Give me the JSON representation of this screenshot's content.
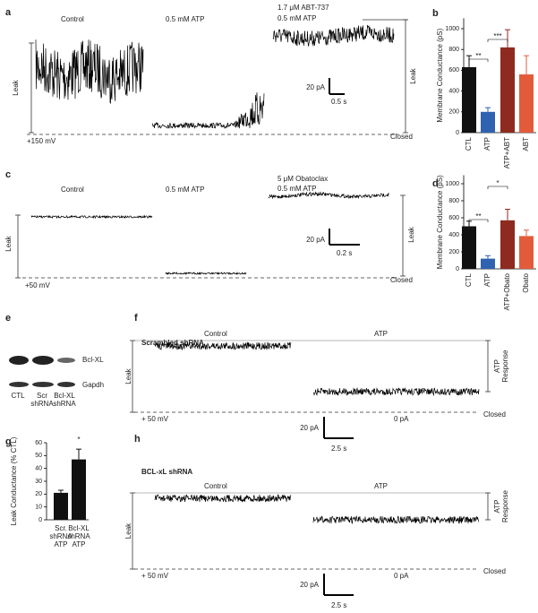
{
  "panels": {
    "a": {
      "label": "a",
      "conditions": [
        "Control",
        "0.5 mM ATP",
        "1.7 μM ABT-737",
        "0.5 mM ATP"
      ],
      "leak_left": "Leak",
      "leak_right": "Leak",
      "scale_current": "20 pA",
      "scale_time": "0.5 s",
      "voltage": "+150 mV",
      "closed": "Closed"
    },
    "c": {
      "label": "c",
      "conditions": [
        "Control",
        "0.5 mM ATP",
        "5 μM Obatoclax",
        "0.5 mM ATP"
      ],
      "leak_left": "Leak",
      "leak_right": "Leak",
      "scale_current": "20 pA",
      "scale_time": "0.2 s",
      "voltage": "+50 mV",
      "closed": "Closed"
    },
    "e": {
      "label": "e",
      "bands": [
        "Bcl-XL",
        "Gapdh"
      ],
      "lanes": [
        "CTL",
        "Scr shRNA",
        "Bcl-XL shRNA"
      ]
    },
    "f": {
      "label": "f",
      "title": "Scrambled shRNA",
      "conditions": [
        "Control",
        "ATP"
      ],
      "leak": "Leak",
      "response": "ATP Response",
      "voltage": "+ 50 mV",
      "zero": "0 pA",
      "closed": "Closed",
      "scale_current": "20 pA",
      "scale_time": "2.5 s"
    },
    "h": {
      "label": "h",
      "title": "BCL-xL shRNA",
      "conditions": [
        "Control",
        "ATP"
      ],
      "leak": "Leak",
      "response": "ATP Response",
      "voltage": "+ 50 mV",
      "zero": "0 pA",
      "closed": "Closed",
      "scale_current": "20 pA",
      "scale_time": "2.5 s"
    }
  },
  "chart_data": [
    {
      "type": "bar",
      "panel": "b",
      "ylabel": "Membrane Conductance (pS)",
      "categories": [
        "CTL",
        "ATP",
        "ATP+ABT",
        "ABT"
      ],
      "values": [
        630,
        200,
        820,
        560
      ],
      "errors": [
        110,
        40,
        170,
        180
      ],
      "colors": [
        "#111111",
        "#2f62b0",
        "#8e2a1f",
        "#e35b3a"
      ],
      "ylim": [
        0,
        1100
      ],
      "yticks": [
        0,
        200,
        400,
        600,
        800,
        1000
      ],
      "significance": [
        "**",
        "***"
      ]
    },
    {
      "type": "bar",
      "panel": "d",
      "ylabel": "Membrane Conductance (pS)",
      "categories": [
        "CTL",
        "ATP",
        "ATP+Obato",
        "Obato"
      ],
      "values": [
        500,
        120,
        570,
        385
      ],
      "errors": [
        60,
        35,
        130,
        70
      ],
      "colors": [
        "#111111",
        "#2f62b0",
        "#8e2a1f",
        "#e35b3a"
      ],
      "ylim": [
        0,
        1100
      ],
      "yticks": [
        0,
        200,
        400,
        600,
        800,
        1000
      ],
      "significance": [
        "**",
        "*"
      ]
    },
    {
      "type": "bar",
      "panel": "g",
      "ylabel": "Leak Conductance (% CTL)",
      "categories": [
        "Scr. shRNA ATP",
        "Bcl-XL shRNA ATP"
      ],
      "values": [
        21,
        47
      ],
      "errors": [
        2,
        8
      ],
      "colors": [
        "#111111",
        "#111111"
      ],
      "ylim": [
        0,
        60
      ],
      "yticks": [
        0,
        10,
        20,
        30,
        40,
        50,
        60
      ],
      "significance": [
        "*"
      ]
    }
  ]
}
